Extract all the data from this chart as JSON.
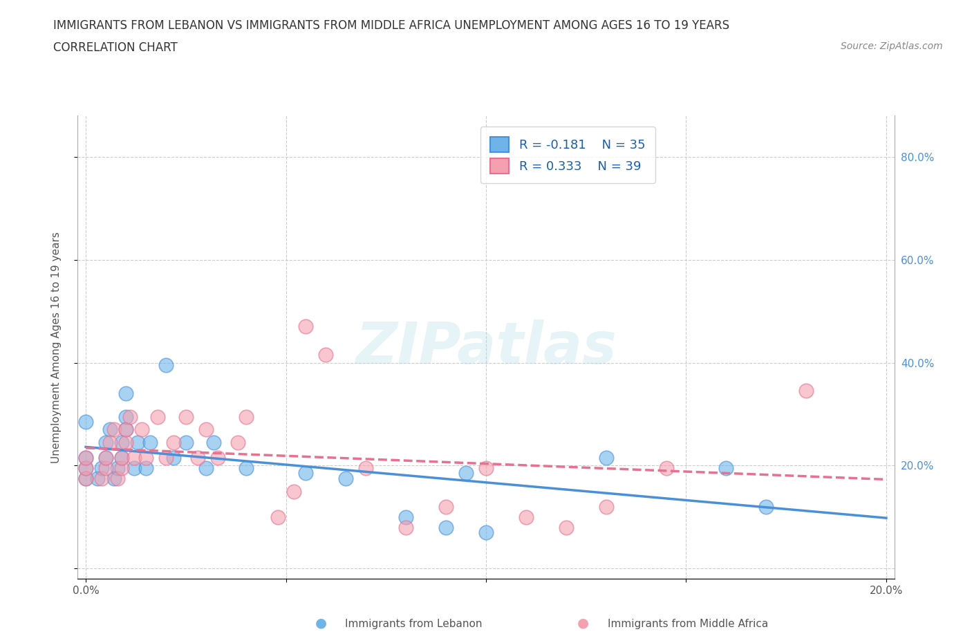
{
  "title_line1": "IMMIGRANTS FROM LEBANON VS IMMIGRANTS FROM MIDDLE AFRICA UNEMPLOYMENT AMONG AGES 16 TO 19 YEARS",
  "title_line2": "CORRELATION CHART",
  "source": "Source: ZipAtlas.com",
  "ylabel": "Unemployment Among Ages 16 to 19 years",
  "legend_R1": "R = -0.181",
  "legend_N1": "N = 35",
  "legend_R2": "R = 0.333",
  "legend_N2": "N = 39",
  "color_lebanon": "#6EB4E8",
  "color_middle_africa": "#F4A0B0",
  "color_trendline_lebanon": "#4A90D9",
  "color_trendline_middle_africa": "#E87090",
  "watermark_text": "ZIPatlas",
  "lebanon_scatter_x": [
    0.0,
    0.0,
    0.0,
    0.0,
    0.003,
    0.004,
    0.005,
    0.005,
    0.006,
    0.007,
    0.008,
    0.009,
    0.009,
    0.01,
    0.01,
    0.01,
    0.012,
    0.013,
    0.015,
    0.016,
    0.02,
    0.022,
    0.025,
    0.03,
    0.032,
    0.04,
    0.055,
    0.065,
    0.08,
    0.09,
    0.095,
    0.1,
    0.13,
    0.16,
    0.17
  ],
  "lebanon_scatter_y": [
    0.175,
    0.195,
    0.215,
    0.285,
    0.175,
    0.195,
    0.215,
    0.245,
    0.27,
    0.175,
    0.195,
    0.215,
    0.245,
    0.27,
    0.295,
    0.34,
    0.195,
    0.245,
    0.195,
    0.245,
    0.395,
    0.215,
    0.245,
    0.195,
    0.245,
    0.195,
    0.185,
    0.175,
    0.1,
    0.08,
    0.185,
    0.07,
    0.215,
    0.195,
    0.12
  ],
  "middle_africa_scatter_x": [
    0.0,
    0.0,
    0.0,
    0.004,
    0.005,
    0.005,
    0.006,
    0.007,
    0.008,
    0.009,
    0.009,
    0.01,
    0.01,
    0.011,
    0.012,
    0.014,
    0.015,
    0.018,
    0.02,
    0.022,
    0.025,
    0.028,
    0.03,
    0.033,
    0.038,
    0.04,
    0.048,
    0.052,
    0.055,
    0.06,
    0.07,
    0.08,
    0.09,
    0.1,
    0.11,
    0.12,
    0.13,
    0.145,
    0.18
  ],
  "middle_africa_scatter_y": [
    0.175,
    0.195,
    0.215,
    0.175,
    0.195,
    0.215,
    0.245,
    0.27,
    0.175,
    0.195,
    0.215,
    0.245,
    0.27,
    0.295,
    0.215,
    0.27,
    0.215,
    0.295,
    0.215,
    0.245,
    0.295,
    0.215,
    0.27,
    0.215,
    0.245,
    0.295,
    0.1,
    0.15,
    0.47,
    0.415,
    0.195,
    0.08,
    0.12,
    0.195,
    0.1,
    0.08,
    0.12,
    0.195,
    0.345
  ],
  "bg_color": "#FFFFFF",
  "grid_color": "#CCCCCC",
  "label_lebanon": "Immigrants from Lebanon",
  "label_middle_africa": "Immigrants from Middle Africa"
}
